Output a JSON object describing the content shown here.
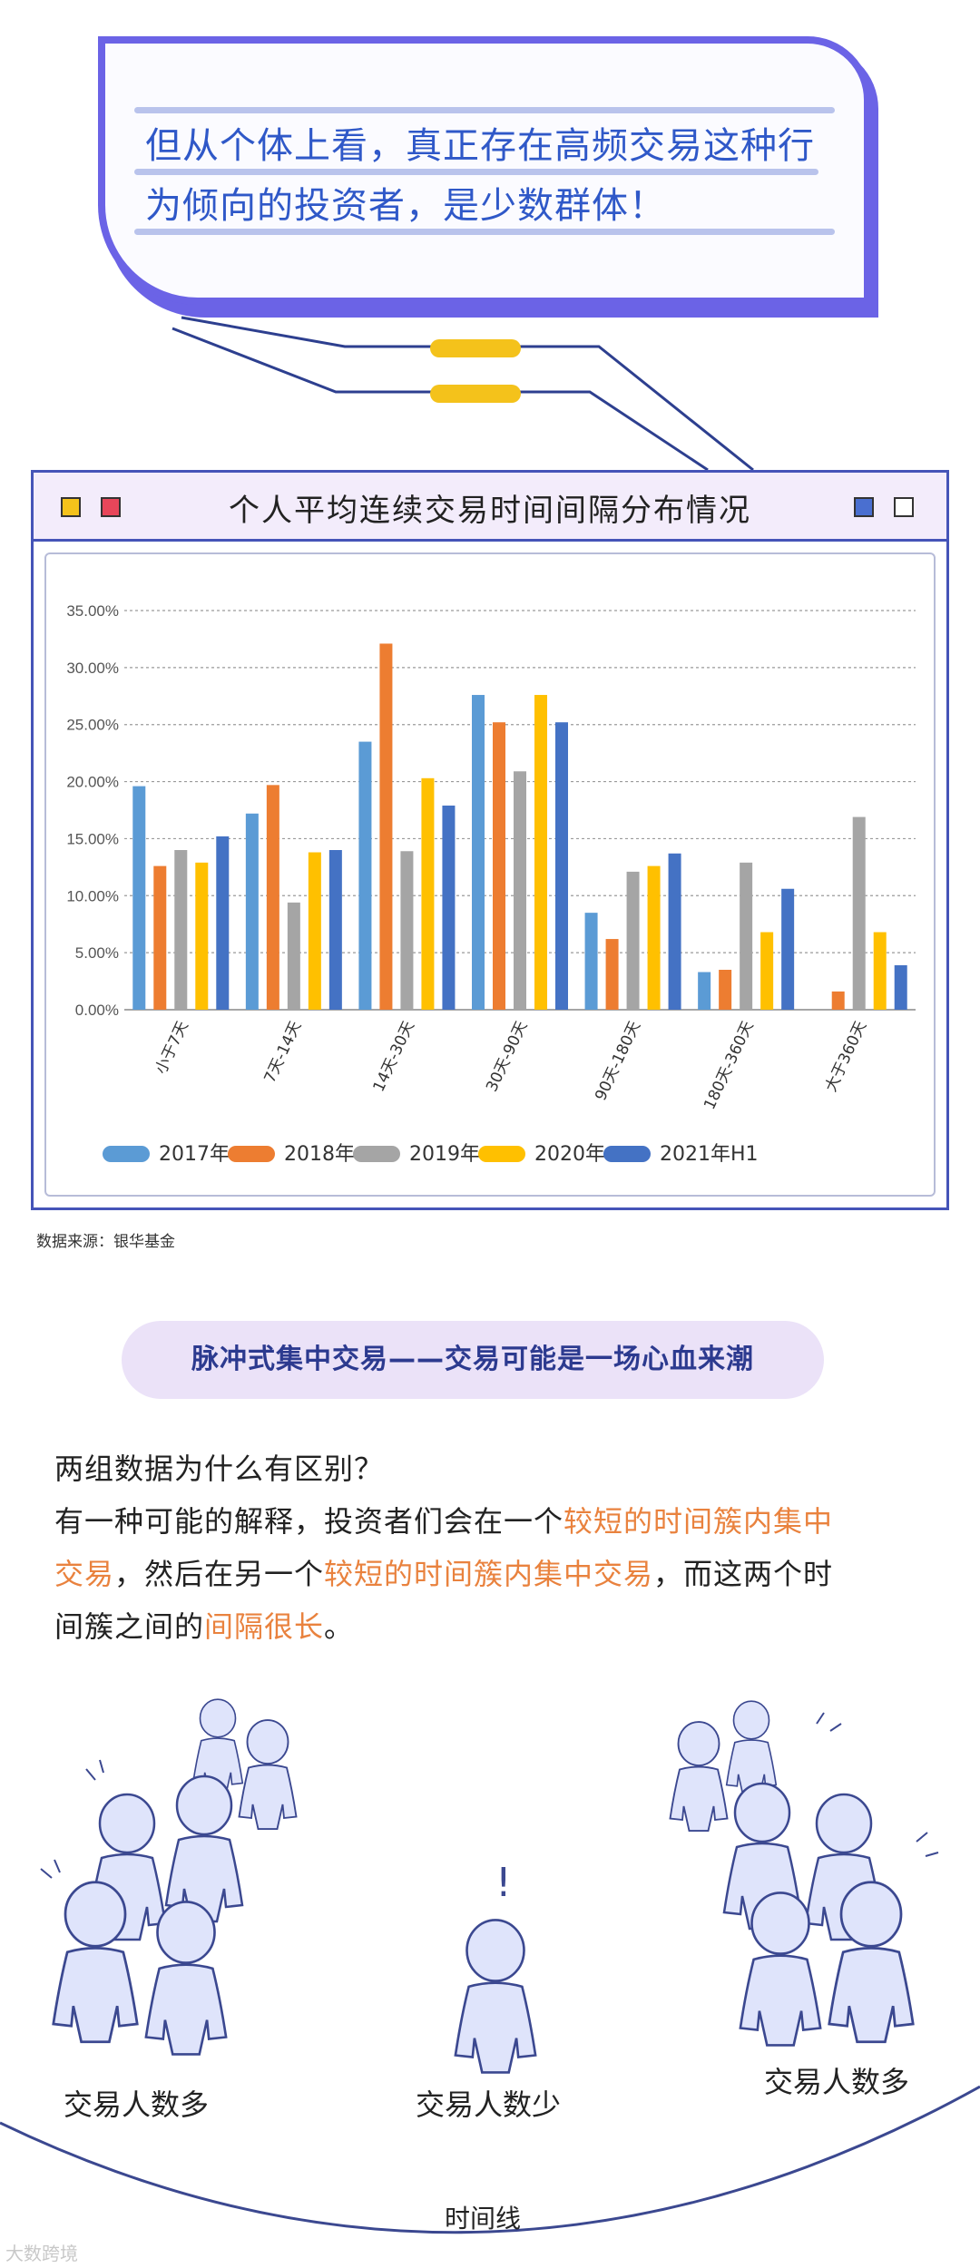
{
  "bubble": {
    "line1": "但从个体上看，真正存在高频交易这种行",
    "line2": "为倾向的投资者，是少数群体！"
  },
  "colors": {
    "brand": "#4554b8",
    "bubble_border": "#6b63e6",
    "text_blue": "#2f58c8",
    "highlight": "#e9823e",
    "pill": "#f4c21b"
  },
  "chart_data": {
    "type": "bar",
    "title": "个人平均连续交易时间间隔分布情况",
    "categories": [
      "小于7天",
      "7天-14天",
      "14天-30天",
      "30天-90天",
      "90天-180天",
      "180天-360天",
      "大于360天"
    ],
    "series": [
      {
        "name": "2017年",
        "color": "#5b9bd5",
        "values": [
          19.6,
          17.2,
          23.5,
          27.6,
          8.5,
          3.3,
          0.0
        ]
      },
      {
        "name": "2018年",
        "color": "#ed7d31",
        "values": [
          12.6,
          19.7,
          32.1,
          25.2,
          6.2,
          3.5,
          1.6
        ]
      },
      {
        "name": "2019年",
        "color": "#a5a5a5",
        "values": [
          14.0,
          9.4,
          13.9,
          20.9,
          12.1,
          12.9,
          16.9
        ]
      },
      {
        "name": "2020年",
        "color": "#ffc000",
        "values": [
          12.9,
          13.8,
          20.3,
          27.6,
          12.6,
          6.8,
          6.8
        ]
      },
      {
        "name": "2021年H1",
        "color": "#4472c4",
        "values": [
          15.2,
          14.0,
          17.9,
          25.2,
          13.7,
          10.6,
          3.9
        ]
      }
    ],
    "ylim": [
      0,
      35
    ],
    "yticks": [
      "0.00%",
      "5.00%",
      "10.00%",
      "15.00%",
      "20.00%",
      "25.00%",
      "30.00%",
      "35.00%"
    ],
    "grid": true,
    "legend": "bottom"
  },
  "source": "数据来源：银华基金",
  "section_heading": "脉冲式集中交易——交易可能是一场心血来潮",
  "paragraph": {
    "q": "两组数据为什么有区别？",
    "p1a": "有一种可能的解释，投资者们会在一个",
    "p1b": "较短的时间簇内集中",
    "p2a": "交易",
    "p2b": "，然后在另一个",
    "p2c": "较短的时间簇内集中交易",
    "p2d": "，而这两个时",
    "p3a": "间簇之间的",
    "p3b": "间隔很长",
    "p3c": "。"
  },
  "illustration": {
    "left_caption": "交易人数多",
    "center_caption": "交易人数少",
    "right_caption": "交易人数多",
    "timeline": "时间线"
  },
  "watermark": "大数跨境"
}
